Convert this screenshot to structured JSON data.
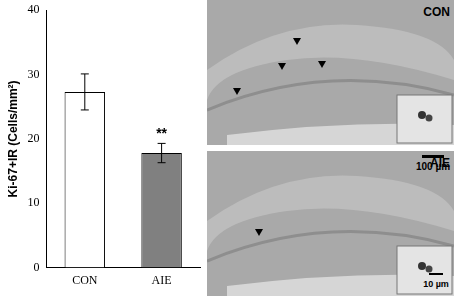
{
  "chart_data": {
    "type": "bar",
    "y_label": "Ki-67+IR (Cells/mm²)",
    "categories": [
      "CON",
      "AIE"
    ],
    "values": [
      27.3,
      17.8
    ],
    "error": [
      2.8,
      1.5
    ],
    "colors": [
      "#ffffff",
      "#808080"
    ],
    "ylim": [
      0,
      40
    ],
    "yticks": [
      0,
      10,
      20,
      30,
      40
    ],
    "grid": false,
    "annotations": [
      {
        "category": "AIE",
        "text": "**"
      }
    ]
  },
  "panels": [
    {
      "label": "CON"
    },
    {
      "label": "AIE",
      "scale_bars": [
        "100 µm",
        "10 µm"
      ]
    }
  ]
}
